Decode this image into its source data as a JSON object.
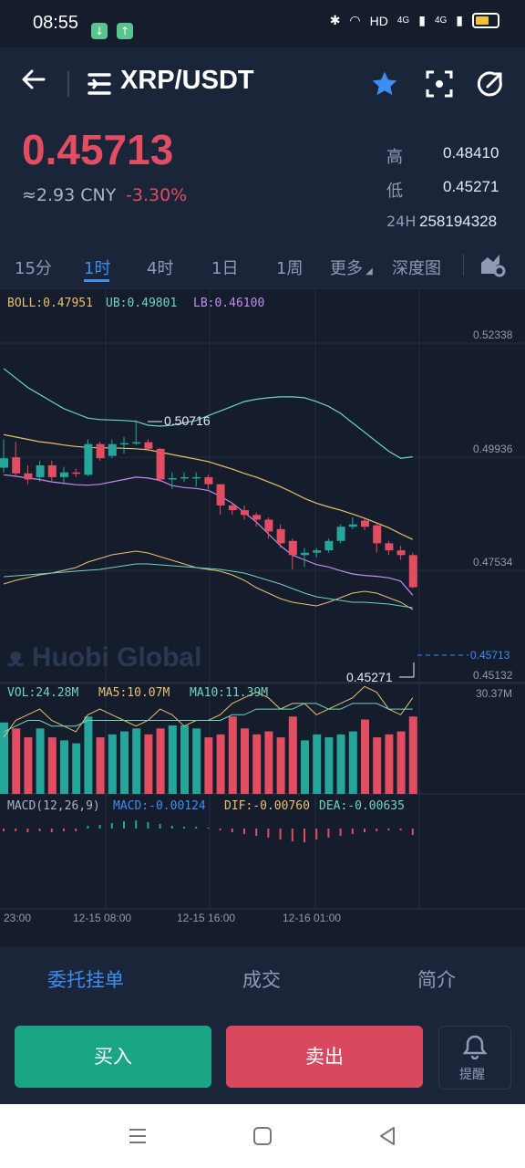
{
  "status_bar": {
    "time": "08:55",
    "network": "HD",
    "signal1": "4G",
    "signal2": "4G"
  },
  "header": {
    "pair": "XRP/USDT",
    "back_icon": "arrow-left-icon",
    "menu_icon": "list-icon",
    "favorite_icon": "star-icon",
    "screenshot_icon": "scan-icon",
    "share_icon": "share-icon",
    "accent": "#3d8ef0"
  },
  "ticker": {
    "last_price": "0.45713",
    "cny": "≈2.93 CNY",
    "change": "-3.30%",
    "high_label": "高",
    "high": "0.48410",
    "low_label": "低",
    "low": "0.45271",
    "vol_label": "24H",
    "vol": "258194328",
    "down_color": "#e24d62",
    "up_color": "#26a69a"
  },
  "intervals": {
    "items": [
      "15分",
      "1时",
      "4时",
      "1日",
      "1周",
      "更多"
    ],
    "active": "1时",
    "depth": "深度图"
  },
  "indicators": {
    "boll": "BOLL:0.47951",
    "ub": "UB:0.49801",
    "lb": "LB:0.46100",
    "vol": "VOL:24.28M",
    "ma5": "MA5:10.07M",
    "ma10": "MA10:11.39M",
    "macd_params": "MACD(12,26,9)",
    "macd": "MACD:-0.00124",
    "dif": "DIF:-0.00760",
    "dea": "DEA:-0.00635"
  },
  "chart_data": {
    "type": "candlestick",
    "price_axis_ticks": [
      "0.52338",
      "0.49936",
      "0.47534",
      "0.45132"
    ],
    "current_price_label": "0.45713",
    "high_marker": "0.50716",
    "low_marker": "0.45271",
    "volume_axis_max": "30.37M",
    "time_labels": [
      "23:00",
      "12-15 08:00",
      "12-15 16:00",
      "12-16 01:00"
    ],
    "watermark": "Huobi Global",
    "candles": [
      {
        "o": 0.497,
        "c": 0.499,
        "h": 0.503,
        "l": 0.496
      },
      {
        "o": 0.4992,
        "c": 0.4958,
        "h": 0.5025,
        "l": 0.495
      },
      {
        "o": 0.4958,
        "c": 0.4945,
        "h": 0.4975,
        "l": 0.4935
      },
      {
        "o": 0.495,
        "c": 0.4975,
        "h": 0.4985,
        "l": 0.494
      },
      {
        "o": 0.4975,
        "c": 0.495,
        "h": 0.4985,
        "l": 0.494
      },
      {
        "o": 0.495,
        "c": 0.496,
        "h": 0.4972,
        "l": 0.4935
      },
      {
        "o": 0.496,
        "c": 0.4958,
        "h": 0.4968,
        "l": 0.495
      },
      {
        "o": 0.4955,
        "c": 0.502,
        "h": 0.503,
        "l": 0.4952
      },
      {
        "o": 0.502,
        "c": 0.499,
        "h": 0.5025,
        "l": 0.4985
      },
      {
        "o": 0.4995,
        "c": 0.502,
        "h": 0.503,
        "l": 0.499
      },
      {
        "o": 0.502,
        "c": 0.5022,
        "h": 0.5035,
        "l": 0.5
      },
      {
        "o": 0.5022,
        "c": 0.5024,
        "h": 0.5071,
        "l": 0.5018
      },
      {
        "o": 0.5024,
        "c": 0.501,
        "h": 0.503,
        "l": 0.5005
      },
      {
        "o": 0.501,
        "c": 0.4945,
        "h": 0.5012,
        "l": 0.494
      },
      {
        "o": 0.4945,
        "c": 0.4948,
        "h": 0.496,
        "l": 0.4925
      },
      {
        "o": 0.4948,
        "c": 0.495,
        "h": 0.496,
        "l": 0.494
      },
      {
        "o": 0.495,
        "c": 0.495,
        "h": 0.496,
        "l": 0.493
      },
      {
        "o": 0.495,
        "c": 0.4935,
        "h": 0.4955,
        "l": 0.4925
      },
      {
        "o": 0.4935,
        "c": 0.489,
        "h": 0.4935,
        "l": 0.487
      },
      {
        "o": 0.489,
        "c": 0.488,
        "h": 0.4895,
        "l": 0.487
      },
      {
        "o": 0.488,
        "c": 0.487,
        "h": 0.489,
        "l": 0.486
      },
      {
        "o": 0.487,
        "c": 0.486,
        "h": 0.4875,
        "l": 0.4845
      },
      {
        "o": 0.486,
        "c": 0.4835,
        "h": 0.4865,
        "l": 0.482
      },
      {
        "o": 0.484,
        "c": 0.481,
        "h": 0.485,
        "l": 0.48
      },
      {
        "o": 0.4815,
        "c": 0.4785,
        "h": 0.482,
        "l": 0.4755
      },
      {
        "o": 0.4785,
        "c": 0.479,
        "h": 0.48,
        "l": 0.476
      },
      {
        "o": 0.479,
        "c": 0.4795,
        "h": 0.48,
        "l": 0.478
      },
      {
        "o": 0.4795,
        "c": 0.4815,
        "h": 0.482,
        "l": 0.479
      },
      {
        "o": 0.4815,
        "c": 0.4845,
        "h": 0.485,
        "l": 0.481
      },
      {
        "o": 0.4845,
        "c": 0.485,
        "h": 0.4865,
        "l": 0.484
      },
      {
        "o": 0.4858,
        "c": 0.4845,
        "h": 0.4862,
        "l": 0.4838
      },
      {
        "o": 0.4848,
        "c": 0.481,
        "h": 0.4852,
        "l": 0.479
      },
      {
        "o": 0.481,
        "c": 0.4795,
        "h": 0.4815,
        "l": 0.4785
      },
      {
        "o": 0.4795,
        "c": 0.4785,
        "h": 0.4805,
        "l": 0.4775
      },
      {
        "o": 0.4785,
        "c": 0.4717,
        "h": 0.479,
        "l": 0.4715
      }
    ],
    "volumes": [
      24,
      22,
      19,
      22,
      19,
      18,
      17,
      26,
      19,
      20,
      21,
      22,
      20,
      22,
      23,
      23,
      22,
      19,
      20,
      26,
      22,
      20,
      21,
      19,
      26,
      18,
      20,
      19,
      20,
      21,
      25,
      19,
      20,
      21,
      26
    ],
    "volume_up": [
      1,
      0,
      0,
      1,
      0,
      1,
      1,
      1,
      0,
      1,
      1,
      1,
      0,
      0,
      1,
      1,
      1,
      0,
      0,
      0,
      0,
      0,
      0,
      0,
      0,
      1,
      1,
      1,
      1,
      1,
      0,
      0,
      0,
      0,
      0
    ]
  },
  "bottom_tabs": {
    "items": [
      "委托挂单",
      "成交",
      "简介"
    ],
    "active": "委托挂单"
  },
  "actions": {
    "buy": "买入",
    "sell": "卖出",
    "alert": "提醒",
    "buy_color": "#1aa684",
    "sell_color": "#d8485f"
  }
}
